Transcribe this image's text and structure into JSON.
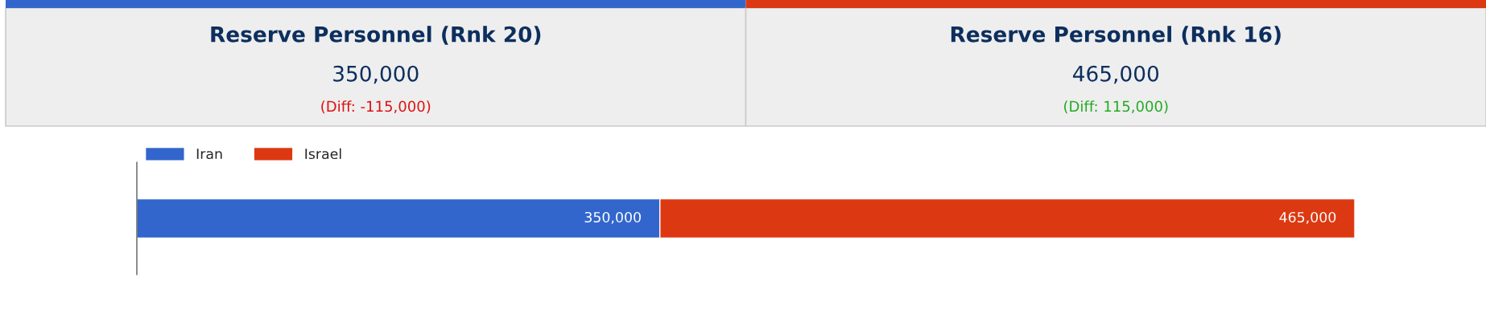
{
  "chart_data": {
    "type": "bar",
    "orientation": "horizontal",
    "stacked": true,
    "categories": [
      null
    ],
    "series": [
      {
        "name": "Iran",
        "color": "#3366cc",
        "values": [
          350000
        ],
        "value_labels": [
          "350,000"
        ]
      },
      {
        "name": "Israel",
        "color": "#dc3912",
        "values": [
          465000
        ],
        "value_labels": [
          "465,000"
        ]
      }
    ],
    "tick_labels": false,
    "grid": false,
    "legend": "top left",
    "annotations": [
      "Reserve Personnel (Rnk 20)",
      "350,000",
      "(Diff: -115,000)",
      "Reserve Personnel (Rnk 16)",
      "465,000",
      "(Diff: 115,000)"
    ]
  }
}
